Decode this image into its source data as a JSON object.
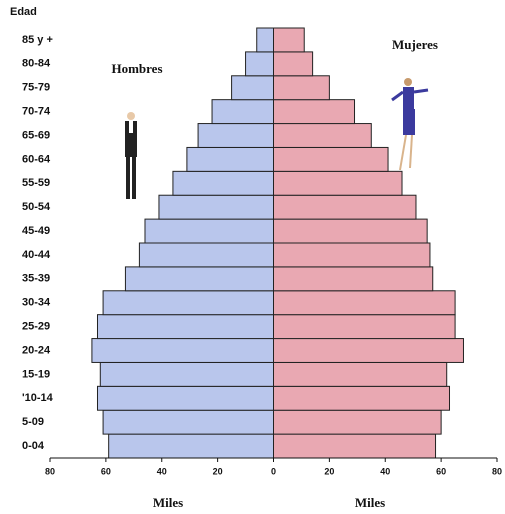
{
  "chart_data": {
    "type": "pyramid",
    "y_title": "Edad",
    "categories": [
      "0-04",
      "5-09",
      "'10-14",
      "15-19",
      "20-24",
      "25-29",
      "30-34",
      "35-39",
      "40-44",
      "45-49",
      "50-54",
      "55-59",
      "60-64",
      "65-69",
      "70-74",
      "75-79",
      "80-84",
      "85 y +"
    ],
    "series": [
      {
        "name": "Hombres",
        "color": "#b9c6ec",
        "side": "left",
        "values": [
          59,
          61,
          63,
          62,
          65,
          63,
          61,
          53,
          48,
          46,
          41,
          36,
          31,
          27,
          22,
          15,
          10,
          6
        ]
      },
      {
        "name": "Mujeres",
        "color": "#e9a8b2",
        "side": "right",
        "values": [
          58,
          60,
          63,
          62,
          68,
          65,
          65,
          57,
          56,
          55,
          51,
          46,
          41,
          35,
          29,
          20,
          14,
          11
        ]
      }
    ],
    "xlim": [
      -80,
      80
    ],
    "xticks": [
      {
        "value": -80,
        "label": "80"
      },
      {
        "value": -60,
        "label": "60"
      },
      {
        "value": -40,
        "label": "40"
      },
      {
        "value": -20,
        "label": "20"
      },
      0,
      20,
      40,
      60,
      80
    ],
    "x_labels": [
      "Miles",
      "Miles"
    ]
  }
}
